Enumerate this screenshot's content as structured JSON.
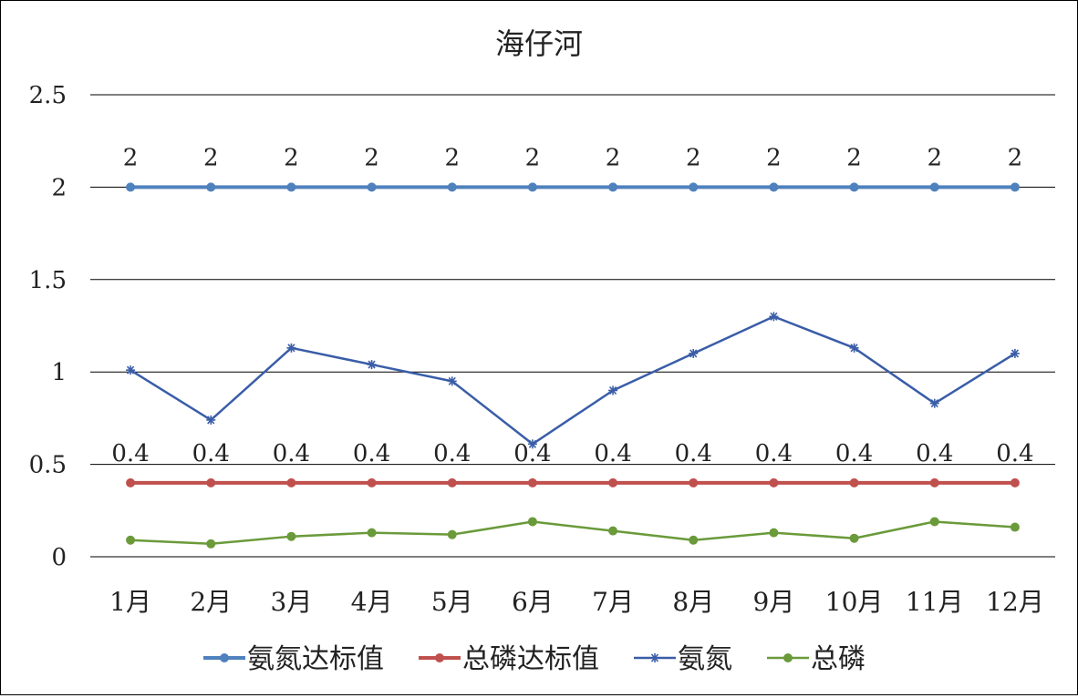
{
  "chart_data": {
    "type": "line",
    "title": "海仔河",
    "categories": [
      "1月",
      "2月",
      "3月",
      "4月",
      "5月",
      "6月",
      "7月",
      "8月",
      "9月",
      "10月",
      "11月",
      "12月"
    ],
    "ylim": [
      0,
      2.5
    ],
    "yticks": [
      "0",
      "0.5",
      "1",
      "1.5",
      "2",
      "2.5"
    ],
    "ytick_values": [
      0,
      0.5,
      1,
      1.5,
      2,
      2.5
    ],
    "grid": true,
    "legend_position": "bottom",
    "series": [
      {
        "name": "氨氮达标值",
        "color": "#4f81bd",
        "marker": "circle",
        "width": 4,
        "values": [
          2,
          2,
          2,
          2,
          2,
          2,
          2,
          2,
          2,
          2,
          2,
          2
        ],
        "labels": [
          "2",
          "2",
          "2",
          "2",
          "2",
          "2",
          "2",
          "2",
          "2",
          "2",
          "2",
          "2"
        ]
      },
      {
        "name": "总磷达标值",
        "color": "#c0504d",
        "marker": "circle",
        "width": 4,
        "values": [
          0.4,
          0.4,
          0.4,
          0.4,
          0.4,
          0.4,
          0.4,
          0.4,
          0.4,
          0.4,
          0.4,
          0.4
        ],
        "labels": [
          "0.4",
          "0.4",
          "0.4",
          "0.4",
          "0.4",
          "0.4",
          "0.4",
          "0.4",
          "0.4",
          "0.4",
          "0.4",
          "0.4"
        ]
      },
      {
        "name": "氨氮",
        "color": "#3a5da8",
        "marker": "star",
        "width": 2.5,
        "values": [
          1.01,
          0.74,
          1.13,
          1.04,
          0.95,
          0.61,
          0.9,
          1.1,
          1.3,
          1.13,
          0.83,
          1.1
        ]
      },
      {
        "name": "总磷",
        "color": "#6a9a3a",
        "marker": "circle",
        "width": 2.5,
        "values": [
          0.09,
          0.07,
          0.11,
          0.13,
          0.12,
          0.19,
          0.14,
          0.09,
          0.13,
          0.1,
          0.19,
          0.16
        ]
      }
    ]
  }
}
